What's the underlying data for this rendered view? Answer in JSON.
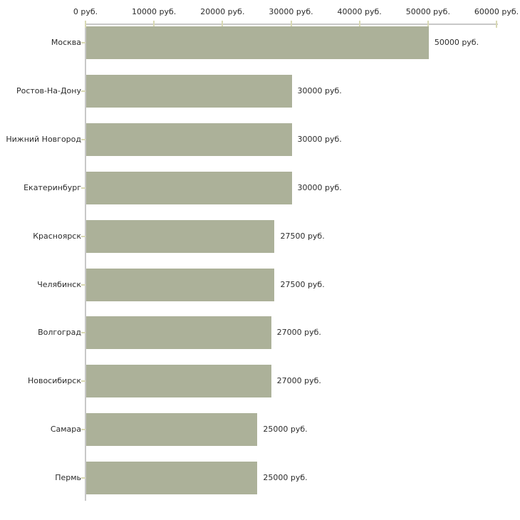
{
  "chart_data": {
    "type": "bar",
    "orientation": "horizontal",
    "title": "",
    "categories": [
      "Москва",
      "Ростов-На-Дону",
      "Нижний Новгород",
      "Екатеринбург",
      "Красноярск",
      "Челябинск",
      "Волгоград",
      "Новосибирск",
      "Самара",
      "Пермь"
    ],
    "values": [
      50000,
      30000,
      30000,
      30000,
      27500,
      27500,
      27000,
      27000,
      25000,
      25000
    ],
    "value_labels": [
      "50000 руб.",
      "30000 руб.",
      "30000 руб.",
      "30000 руб.",
      "27500 руб.",
      "27500 руб.",
      "27000 руб.",
      "27000 руб.",
      "25000 руб.",
      "25000 руб."
    ],
    "x_ticks": [
      0,
      10000,
      20000,
      30000,
      40000,
      50000,
      60000
    ],
    "x_tick_labels": [
      "0 руб.",
      "10000 руб.",
      "20000 руб.",
      "30000 руб.",
      "40000 руб.",
      "50000 руб.",
      "60000 руб."
    ],
    "xlim": [
      0,
      60000
    ],
    "grid": false,
    "legend_position": "none",
    "colors": {
      "bar": "#acb199",
      "axis": "#c8c8c8",
      "tick": "#d9d9b4",
      "text": "#2b2b2b",
      "background": "#ffffff"
    }
  }
}
